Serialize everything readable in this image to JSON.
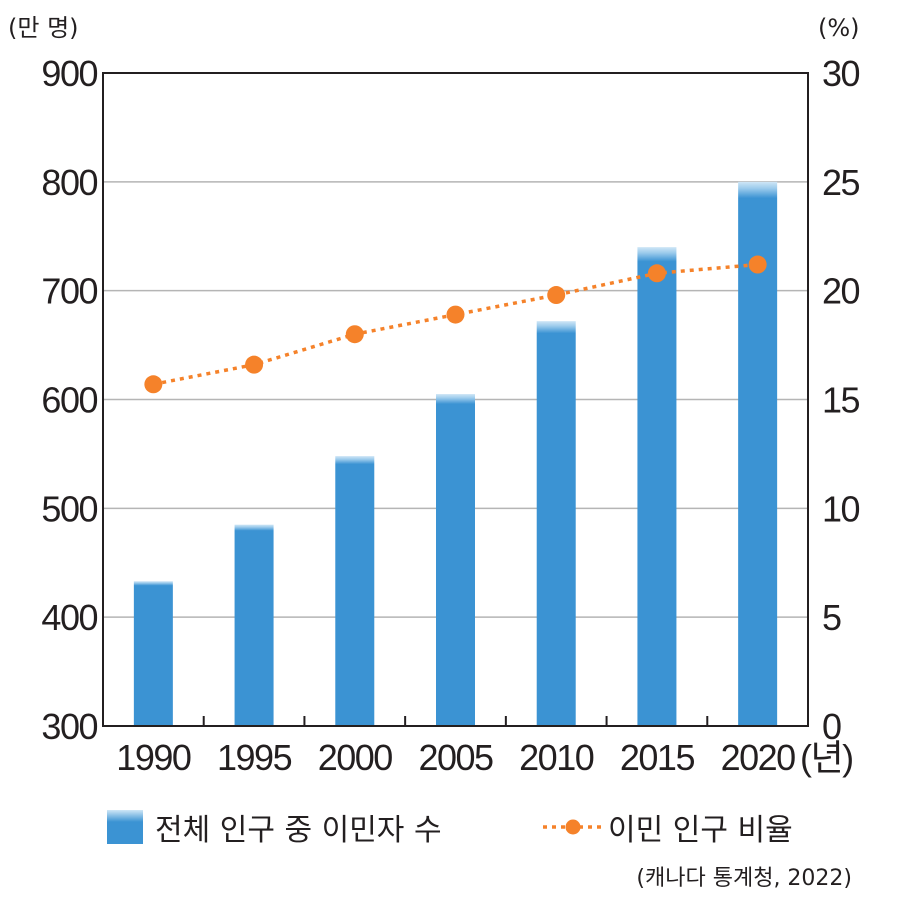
{
  "chart_data": {
    "type": "bar+line",
    "categories": [
      "1990",
      "1995",
      "2000",
      "2005",
      "2010",
      "2015",
      "2020"
    ],
    "x_unit": "(년)",
    "left_axis": {
      "unit": "(만 명)",
      "ylim": [
        300,
        900
      ],
      "ticks": [
        "300",
        "400",
        "500",
        "600",
        "700",
        "800",
        "900"
      ]
    },
    "right_axis": {
      "unit": "(%)",
      "ylim": [
        0,
        30
      ],
      "ticks": [
        "0",
        "5",
        "10",
        "15",
        "20",
        "25",
        "30"
      ]
    },
    "series": [
      {
        "name": "전체 인구 중 이민자 수",
        "kind": "bar",
        "axis": "left",
        "color": "#3b93d3",
        "values": [
          433,
          485,
          548,
          605,
          672,
          740,
          800
        ]
      },
      {
        "name": "이민 인구 비율",
        "kind": "line",
        "style": "dotted",
        "axis": "right",
        "color": "#f5822a",
        "values": [
          15.7,
          16.6,
          18.0,
          18.9,
          19.8,
          20.8,
          21.2
        ]
      }
    ],
    "grid": true,
    "legend_position": "bottom",
    "source": "(캐나다 통계청, 2022)"
  }
}
